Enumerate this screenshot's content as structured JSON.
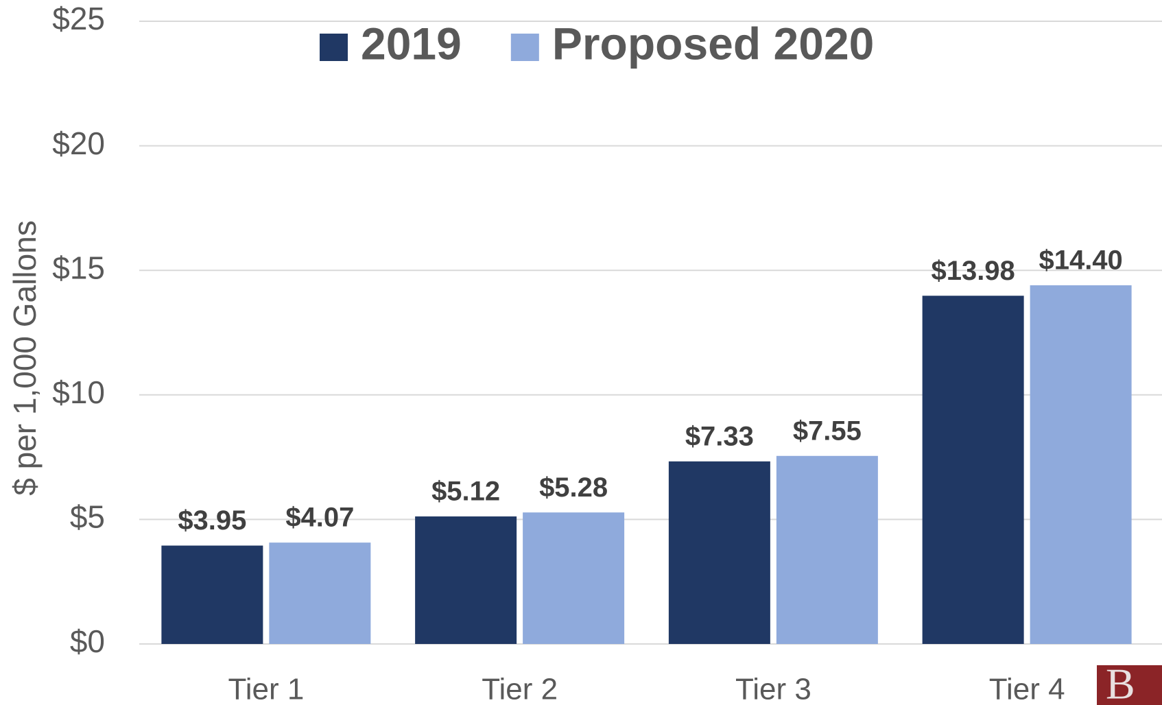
{
  "chart_data": {
    "type": "bar",
    "y_axis_label": "$ per 1,000 Gallons",
    "categories": [
      "Tier 1",
      "Tier 2",
      "Tier 3",
      "Tier 4"
    ],
    "series": [
      {
        "name": "2019",
        "color": "#203864",
        "values": [
          3.95,
          5.12,
          7.33,
          13.98
        ],
        "value_labels": [
          "$3.95",
          "$5.12",
          "$7.33",
          "$13.98"
        ]
      },
      {
        "name": "Proposed 2020",
        "color": "#8faadc",
        "values": [
          4.07,
          5.28,
          7.55,
          14.4
        ],
        "value_labels": [
          "$4.07",
          "$5.28",
          "$7.55",
          "$14.40"
        ]
      }
    ],
    "ylim": [
      0,
      25
    ],
    "yticks": [
      {
        "value": 0,
        "label": "$0"
      },
      {
        "value": 5,
        "label": "$5"
      },
      {
        "value": 10,
        "label": "$10"
      },
      {
        "value": 15,
        "label": "$15"
      },
      {
        "value": 20,
        "label": "$20"
      },
      {
        "value": 25,
        "label": "$25"
      }
    ],
    "grid": true,
    "legend": "top"
  },
  "logo": {
    "text": "B"
  }
}
